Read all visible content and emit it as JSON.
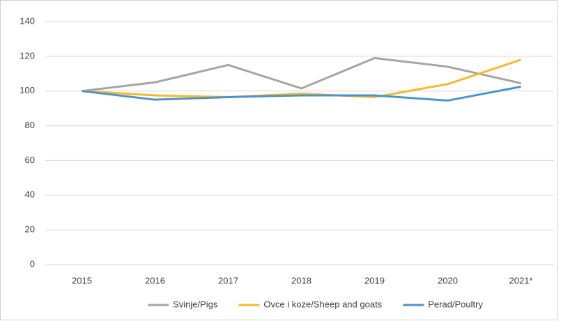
{
  "chart_data": {
    "type": "line",
    "categories": [
      "2015",
      "2016",
      "2017",
      "2018",
      "2019",
      "2020",
      "2021*"
    ],
    "series": [
      {
        "name": "Svinje/Pigs",
        "color": "#a5a5a5",
        "values": [
          100,
          105,
          115,
          101.5,
          119,
          114,
          104.5
        ]
      },
      {
        "name": "Ovce i koze/Sheep and goats",
        "color": "#f7b928",
        "values": [
          100,
          97.5,
          96.5,
          98.5,
          96.5,
          104,
          118
        ]
      },
      {
        "name": "Perad/Poultry",
        "color": "#4d94cc",
        "values": [
          100,
          95,
          96.5,
          97.5,
          97.5,
          94.5,
          102.5
        ]
      }
    ],
    "ylim": [
      0,
      140
    ],
    "yticks": [
      0,
      20,
      40,
      60,
      80,
      100,
      120,
      140
    ],
    "grid": true,
    "legend": "bottom"
  }
}
